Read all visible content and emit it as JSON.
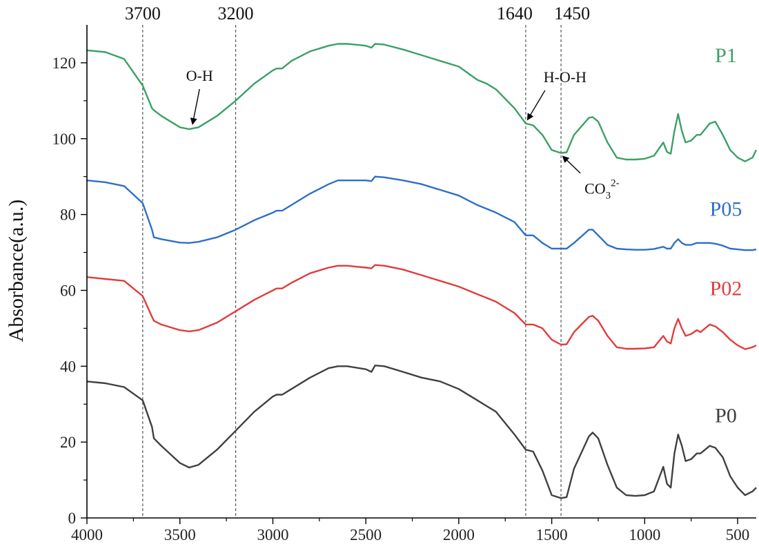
{
  "chart_data": {
    "type": "line",
    "title": "",
    "xlabel": "",
    "ylabel": "Absorbance(a.u.)",
    "xlim": [
      4000,
      400
    ],
    "ylim": [
      0,
      130
    ],
    "x_ticks": [
      4000,
      3500,
      3000,
      2500,
      2000,
      1500,
      1000,
      500
    ],
    "y_ticks": [
      0,
      20,
      40,
      60,
      80,
      100,
      120
    ],
    "reference_lines": [
      {
        "x": 3700,
        "label": "3700"
      },
      {
        "x": 3200,
        "label": "3200"
      },
      {
        "x": 1640,
        "label": "1640"
      },
      {
        "x": 1450,
        "label": "1450"
      }
    ],
    "annotations": [
      {
        "text": "O-H",
        "x": 3450,
        "y": 102.5
      },
      {
        "text": "H-O-H",
        "x": 1640,
        "y": 104
      },
      {
        "text": "CO",
        "sub": "3",
        "sup": "2-",
        "x": 1450,
        "y": 96
      }
    ],
    "x": [
      4000,
      3900,
      3800,
      3700,
      3650,
      3640,
      3600,
      3500,
      3450,
      3400,
      3300,
      3200,
      3100,
      3000,
      2980,
      2950,
      2900,
      2800,
      2700,
      2650,
      2600,
      2500,
      2470,
      2450,
      2400,
      2300,
      2200,
      2100,
      2000,
      1900,
      1850,
      1800,
      1700,
      1640,
      1600,
      1550,
      1500,
      1450,
      1420,
      1380,
      1300,
      1280,
      1250,
      1200,
      1150,
      1100,
      1050,
      1000,
      950,
      900,
      880,
      860,
      840,
      820,
      800,
      780,
      750,
      720,
      700,
      650,
      620,
      580,
      540,
      500,
      460,
      420,
      400
    ],
    "series": [
      {
        "name": "P0",
        "color": "#404040",
        "values": [
          36,
          35.5,
          34.5,
          31,
          24,
          21,
          19,
          14.5,
          13.3,
          14,
          18,
          23,
          28,
          32,
          32.5,
          32.5,
          34,
          37,
          39.5,
          40,
          40,
          39.2,
          38.5,
          40.2,
          40,
          38.5,
          37,
          36,
          34,
          31,
          29.5,
          28,
          22,
          18,
          17.5,
          12.5,
          6,
          5.2,
          5.5,
          13,
          21.5,
          22.5,
          21,
          14,
          8,
          6,
          5.8,
          6,
          7,
          13.5,
          9,
          8,
          17,
          22,
          19,
          15,
          15.5,
          17,
          17,
          19,
          18.5,
          16,
          11,
          8,
          6,
          7,
          8
        ]
      },
      {
        "name": "P02",
        "color": "#e03c3c",
        "values": [
          63.5,
          63,
          62.5,
          58.5,
          53,
          52,
          51,
          49.5,
          49.2,
          49.5,
          51.5,
          54.5,
          57.5,
          60,
          60.5,
          60.5,
          62,
          64.5,
          66,
          66.5,
          66.5,
          66,
          65.8,
          66.7,
          66.5,
          65.5,
          64,
          62.5,
          61,
          59,
          58,
          57,
          54,
          51,
          51,
          50,
          47,
          45.7,
          45.8,
          49,
          53,
          53.3,
          52,
          48,
          45,
          44.6,
          44.6,
          44.7,
          45,
          48,
          46.5,
          46,
          50,
          52.5,
          50,
          48,
          48.5,
          49.5,
          49,
          51,
          50.5,
          49,
          47,
          45.5,
          44.5,
          45,
          45.5
        ]
      },
      {
        "name": "P05",
        "color": "#2d6fc8",
        "values": [
          89,
          88.5,
          87.5,
          83,
          76,
          74,
          73.5,
          72.6,
          72.5,
          72.8,
          74,
          76,
          78.5,
          80.5,
          81,
          81,
          82.5,
          85.5,
          88,
          89,
          89,
          89,
          88.8,
          90,
          89.8,
          89,
          88,
          86.5,
          85,
          82.5,
          81.5,
          80.5,
          78,
          74.5,
          74.5,
          72.5,
          71,
          71,
          71,
          72.5,
          76,
          76,
          74.5,
          72,
          71,
          70.8,
          70.7,
          70.7,
          70.9,
          71.5,
          71,
          71,
          72.5,
          73.5,
          72.5,
          72,
          72,
          72.5,
          72.5,
          72.5,
          72.3,
          71.8,
          71,
          70.8,
          70.6,
          70.6,
          70.8
        ]
      },
      {
        "name": "P1",
        "color": "#3aa066",
        "values": [
          123.3,
          122.8,
          121,
          114,
          108,
          107.5,
          106,
          103,
          102.5,
          103,
          106,
          110,
          114.5,
          118,
          118.5,
          118.5,
          120.5,
          123,
          124.5,
          125,
          125,
          124.5,
          124,
          125,
          124.8,
          123.5,
          122,
          120.5,
          119,
          115.5,
          114.5,
          113,
          108,
          104,
          103.5,
          101,
          97,
          96.2,
          96.4,
          101,
          105.5,
          105.7,
          104.5,
          99,
          95,
          94.5,
          94.5,
          94.7,
          95.5,
          99,
          96.5,
          96,
          102,
          106.5,
          102,
          99,
          99.5,
          101,
          101,
          104,
          104.5,
          101,
          97,
          95,
          94,
          95,
          97
        ]
      }
    ]
  }
}
